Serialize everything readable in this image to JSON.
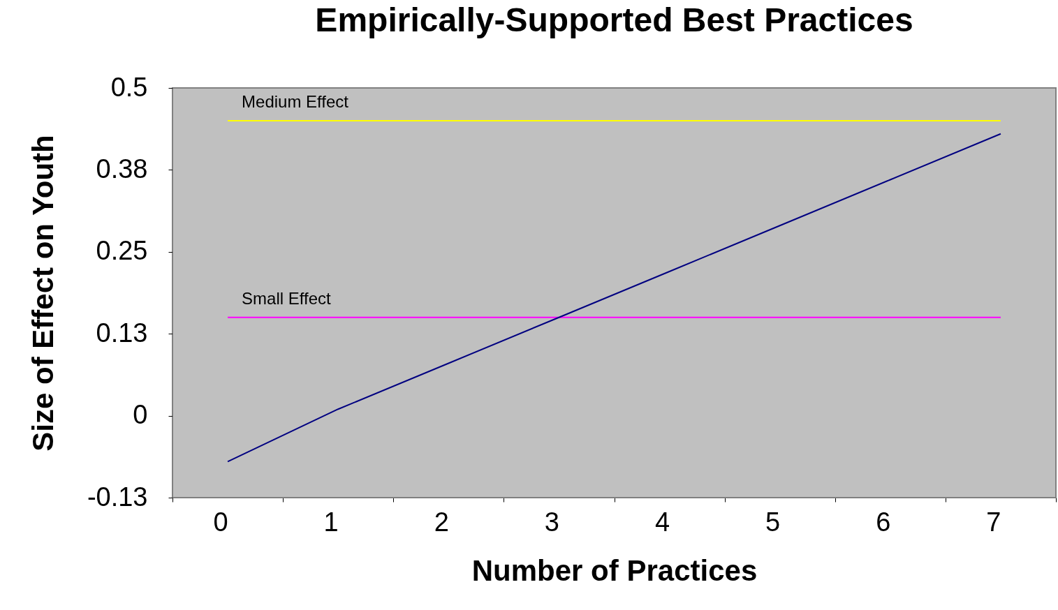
{
  "chart_data": {
    "type": "line",
    "title": "Empirically-Supported Best Practices",
    "xlabel": "Number of Practices",
    "ylabel": "Size of Effect on Youth",
    "categories": [
      "0",
      "1",
      "2",
      "3",
      "4",
      "5",
      "6",
      "7"
    ],
    "series": [
      {
        "color": "#000080",
        "values": [
          -0.07,
          0.01,
          0.08,
          0.15,
          0.22,
          0.29,
          0.36,
          0.43
        ]
      }
    ],
    "ylim": [
      -0.125,
      0.5
    ],
    "yticks": [
      {
        "value": -0.125,
        "label": "-0.13"
      },
      0,
      {
        "value": 0.125,
        "label": "0.13"
      },
      0.25,
      {
        "value": 0.375,
        "label": "0.38"
      },
      0.5
    ],
    "ref_lines": [
      {
        "axis": "y",
        "value": 0.45,
        "label": "Medium Effect",
        "color": "#ffff00"
      },
      {
        "axis": "y",
        "value": 0.15,
        "label": "Small Effect",
        "color": "#ff00ff"
      }
    ],
    "grid": false,
    "marker": "none",
    "line_style": "solid"
  }
}
